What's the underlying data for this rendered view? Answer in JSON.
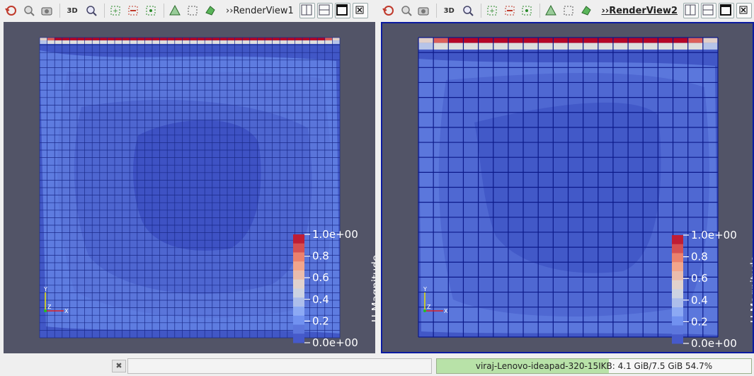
{
  "views": [
    {
      "name": "RenderView1",
      "active": false,
      "toolbar_icons": [
        "reset-camera-icon",
        "zoom-to-data-icon",
        "capture-screenshot-icon",
        "toggle-3d-icon",
        "zoom-to-box-icon",
        "select-cells-icon",
        "deselect-cells-icon",
        "grow-selection-icon",
        "select-points-icon",
        "interactive-select-icon",
        "hover-points-icon"
      ],
      "three_d_label": "3D",
      "colorbar": {
        "title": "U Magnitude",
        "ticks": [
          "1.0e+00",
          "0.8",
          "0.6",
          "0.4",
          "0.2",
          "0.0e+00"
        ],
        "range": [
          0,
          1
        ]
      },
      "axes": {
        "y": "Y",
        "z": "Z",
        "x": "X"
      }
    },
    {
      "name": "RenderView2",
      "active": true,
      "toolbar_icons": [
        "reset-camera-icon",
        "zoom-to-data-icon",
        "capture-screenshot-icon",
        "toggle-3d-icon",
        "zoom-to-box-icon",
        "select-cells-icon",
        "deselect-cells-icon",
        "grow-selection-icon",
        "select-points-icon",
        "interactive-select-icon",
        "hover-points-icon"
      ],
      "three_d_label": "3D",
      "colorbar": {
        "title": "U Magnitude",
        "ticks": [
          "1.0e+00",
          "0.8",
          "0.6",
          "0.4",
          "0.2",
          "0.0e+00"
        ],
        "range": [
          0,
          1
        ]
      },
      "axes": {
        "y": "Y",
        "z": "Z",
        "x": "X"
      }
    }
  ],
  "colors": {
    "background": "#525467",
    "active_border": "#0b1ba0",
    "cool_dark": "#3b4cc0",
    "hot": "#b40426"
  },
  "status": {
    "memory_text": "viraj-Lenovo-ideapad-320-15IKB: 4.1 GiB/7.5 GiB 54.7%",
    "memory_fraction": 0.547,
    "close_label": "✖"
  }
}
